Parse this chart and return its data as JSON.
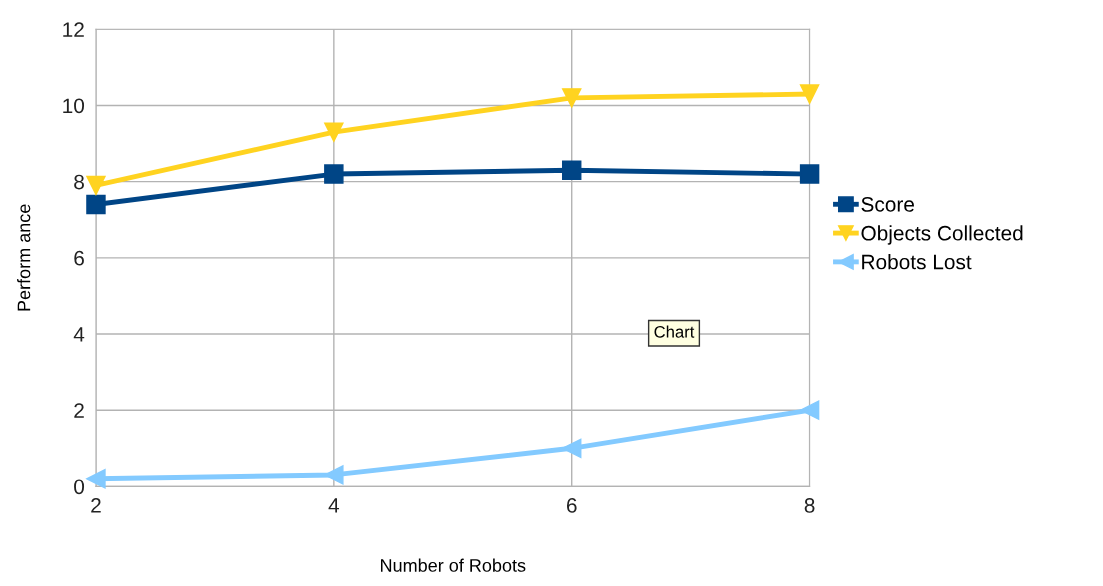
{
  "chart_data": {
    "type": "line",
    "xlabel": "Number of Robots",
    "ylabel": "Perform ance",
    "x": [
      2,
      4,
      6,
      8
    ],
    "xlim": [
      2,
      8
    ],
    "xticks": [
      2,
      4,
      6,
      8
    ],
    "ylim": [
      0,
      12
    ],
    "yticks": [
      0,
      2,
      4,
      6,
      8,
      10,
      12
    ],
    "grid": true,
    "legend": "right",
    "series": [
      {
        "name": "Score",
        "color": "#004586",
        "values": [
          7.4,
          8.2,
          8.3,
          8.2
        ],
        "marker": "square"
      },
      {
        "name": "Objects Collected",
        "color": "#ffd320",
        "values": [
          7.9,
          9.3,
          10.2,
          10.3
        ],
        "marker": "triangle_down"
      },
      {
        "name": "Robots Lost",
        "color": "#83caff",
        "values": [
          0.2,
          0.3,
          1.0,
          2.0
        ],
        "marker": "triangle_left"
      }
    ],
    "annotations": [
      "Chart"
    ]
  }
}
